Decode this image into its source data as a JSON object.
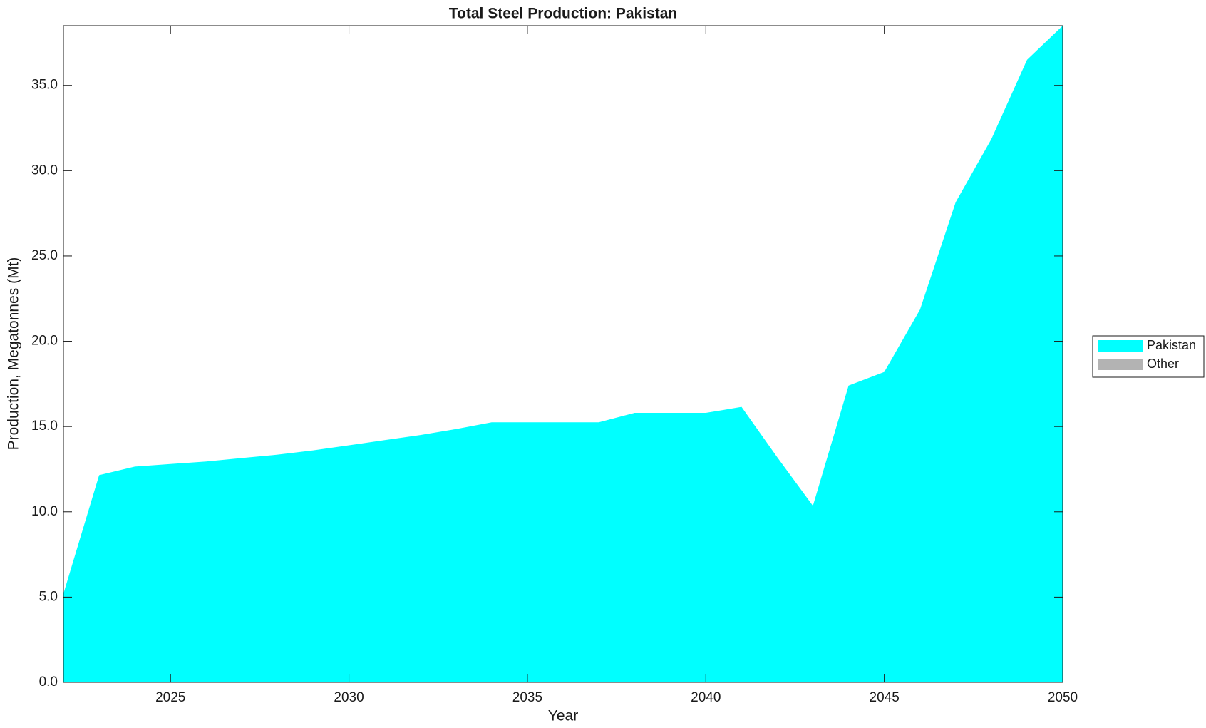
{
  "chart_data": {
    "type": "stacked_area",
    "title": "Total Steel Production: Pakistan",
    "xlabel": "Year",
    "ylabel": "Production, Megatonnes (Mt)",
    "x": [
      2022,
      2023,
      2024,
      2025,
      2026,
      2027,
      2028,
      2029,
      2030,
      2031,
      2032,
      2033,
      2034,
      2035,
      2036,
      2037,
      2038,
      2039,
      2040,
      2041,
      2042,
      2043,
      2044,
      2045,
      2046,
      2047,
      2048,
      2049,
      2050
    ],
    "series": [
      {
        "name": "Pakistan",
        "color": "#00ffff",
        "values": [
          5.2,
          12.15,
          12.65,
          12.8,
          12.95,
          13.15,
          13.35,
          13.6,
          13.9,
          14.2,
          14.5,
          14.85,
          15.25,
          15.25,
          15.25,
          15.25,
          15.8,
          15.8,
          15.8,
          16.15,
          13.2,
          10.35,
          17.4,
          18.2,
          21.85,
          28.15,
          31.85,
          36.5,
          38.5
        ]
      },
      {
        "name": "Other",
        "color": "#b3b3b3",
        "values": [
          0,
          0,
          0,
          0,
          0,
          0,
          0,
          0,
          0,
          0,
          0,
          0,
          0,
          0,
          0,
          0,
          0,
          0,
          0,
          0,
          0,
          0,
          0,
          0,
          0,
          0,
          0,
          0,
          0
        ]
      }
    ],
    "xlim": [
      2022,
      2050
    ],
    "xticks": [
      2025,
      2030,
      2035,
      2040,
      2045,
      2050
    ],
    "ylim": [
      0,
      38.5
    ],
    "yticks": [
      {
        "value": 0,
        "label": "0.0"
      },
      {
        "value": 5,
        "label": "5.0"
      },
      {
        "value": 10,
        "label": "10.0"
      },
      {
        "value": 15,
        "label": "15.0"
      },
      {
        "value": 20,
        "label": "20.0"
      },
      {
        "value": 25,
        "label": "25.0"
      },
      {
        "value": 30,
        "label": "30.0"
      },
      {
        "value": 35,
        "label": "35.0"
      }
    ],
    "grid": false,
    "legend": "right"
  }
}
